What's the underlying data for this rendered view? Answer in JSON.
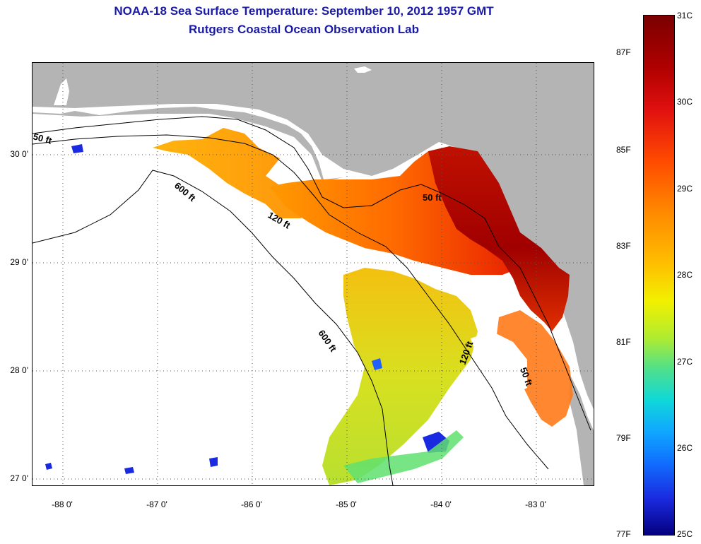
{
  "header": {
    "title_line1": "NOAA-18 Sea Surface Temperature:  September 10, 2012 1957 GMT",
    "title_line2": "Rutgers Coastal Ocean Observation Lab"
  },
  "axes": {
    "y_labels": [
      "30 0'",
      "29 0'",
      "28 0'",
      "27 0'"
    ],
    "x_labels": [
      "-88 0'",
      "-87 0'",
      "-86 0'",
      "-85 0'",
      "-84 0'",
      "-83 0'"
    ]
  },
  "contours": {
    "label_50ft": "50 ft",
    "label_120ft": "120 ft",
    "label_600ft": "600 ft"
  },
  "colorbar": {
    "fahrenheit": [
      "87F",
      "85F",
      "83F",
      "81F",
      "79F",
      "77F"
    ],
    "celsius": [
      "31C",
      "30C",
      "29C",
      "28C",
      "27C",
      "26C",
      "25C"
    ]
  },
  "colors": {
    "land": "#b4b4b4",
    "title": "#1a1aa6",
    "warm": "#b00000",
    "cool": "#1a2ae0"
  }
}
